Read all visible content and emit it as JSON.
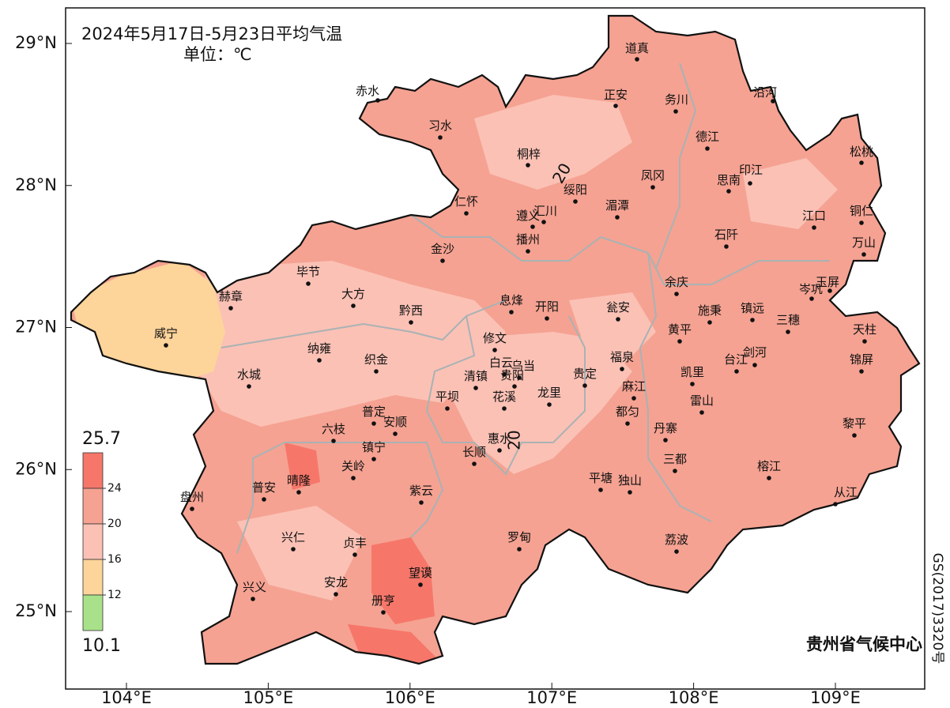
{
  "title": "2024年5月17日-5月23日平均气温",
  "unit": "单位：℃",
  "legend": {
    "max": 25.7,
    "min": 10.1,
    "ticks": [
      24,
      20,
      16,
      12
    ],
    "colors": [
      "#f6776a",
      "#f5a292",
      "#fbc1b5",
      "#fdd49a",
      "#a8e18a"
    ]
  },
  "lat_ticks": [
    {
      "value": 29,
      "label": "29°N"
    },
    {
      "value": 28,
      "label": "28°N"
    },
    {
      "value": 27,
      "label": "27°N"
    },
    {
      "value": 26,
      "label": "26°N"
    },
    {
      "value": 25,
      "label": "25°N"
    }
  ],
  "lon_ticks": [
    {
      "value": 104,
      "label": "104°E"
    },
    {
      "value": 105,
      "label": "105°E"
    },
    {
      "value": 106,
      "label": "106°E"
    },
    {
      "value": 107,
      "label": "107°E"
    },
    {
      "value": 108,
      "label": "108°E"
    },
    {
      "value": 109,
      "label": "109°E"
    }
  ],
  "contour_labels": [
    "20",
    "20"
  ],
  "cities": [
    "道真",
    "赤水",
    "正安",
    "务川",
    "沿河",
    "习水",
    "德江",
    "松桃",
    "桐梓",
    "凤冈",
    "思南",
    "印江",
    "绥阳",
    "仁怀",
    "遵义",
    "汇川",
    "湄潭",
    "江口",
    "铜仁",
    "播州",
    "石阡",
    "万山",
    "金沙",
    "毕节",
    "余庆",
    "玉屏",
    "岑巩",
    "赫章",
    "大方",
    "息烽",
    "开阳",
    "黔西",
    "瓮安",
    "施秉",
    "镇远",
    "三穗",
    "威宁",
    "黄平",
    "天柱",
    "修文",
    "纳雍",
    "织金",
    "白云",
    "乌当",
    "贵阳",
    "剑河",
    "台江",
    "福泉",
    "锦屏",
    "凯里",
    "清镇",
    "贵定",
    "水城",
    "麻江",
    "平坝",
    "花溪",
    "龙里",
    "雷山",
    "普定",
    "都匀",
    "安顺",
    "丹寨",
    "黎平",
    "六枝",
    "惠水",
    "镇宁",
    "长顺",
    "三都",
    "关岭",
    "榕江",
    "晴隆",
    "普安",
    "紫云",
    "平塘",
    "独山",
    "从江",
    "盘州",
    "罗甸",
    "荔波",
    "兴仁",
    "贞丰",
    "望谟",
    "安龙",
    "兴义",
    "册亨"
  ],
  "credit": "贵州省气候中心",
  "map_number": "GS(2017)3320号"
}
